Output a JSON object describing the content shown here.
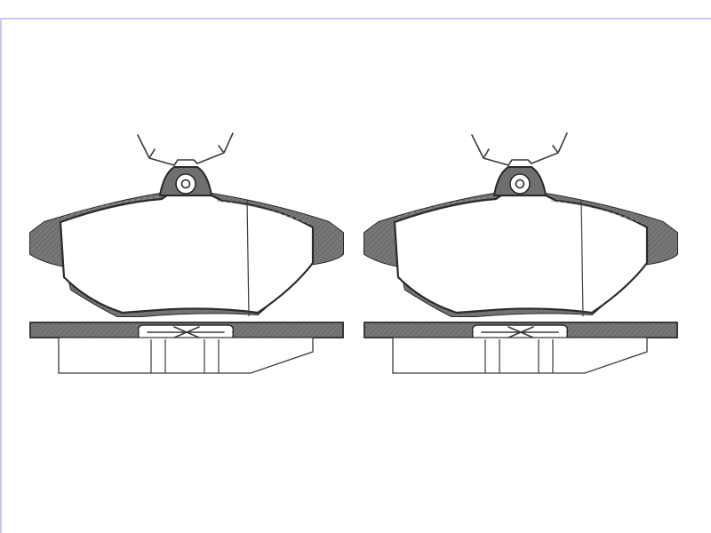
{
  "figure": {
    "background": "#ffffff",
    "line_color": "#2a2a2a",
    "backing_color": "#6f6f6f",
    "frame_color": "#c9c9ef"
  },
  "pads": [
    {
      "view": "front",
      "id": "left-pad"
    },
    {
      "view": "front",
      "id": "right-pad"
    }
  ]
}
